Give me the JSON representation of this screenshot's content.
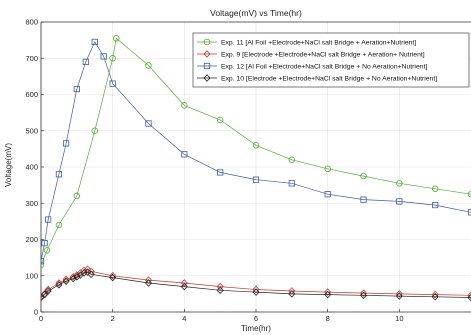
{
  "chart_data": {
    "type": "line",
    "title": "Voltage(mV) vs Time(hr)",
    "xlabel": "Time(hr)",
    "ylabel": "Voltage(mV)",
    "xlim": [
      0,
      12
    ],
    "ylim": [
      0,
      800
    ],
    "xticks": [
      0,
      2,
      4,
      6,
      8,
      10
    ],
    "yticks": [
      0,
      100,
      200,
      300,
      400,
      500,
      600,
      700,
      800
    ],
    "grid": true,
    "legend_position": "top-right",
    "series": [
      {
        "name": "Exp. 11 [Al Foil +Electrode+NaCl salt Bridge + Aeration+Nutrient]",
        "color": "#4caf2e",
        "marker": "circle",
        "x": [
          0,
          0.17,
          0.5,
          1,
          1.5,
          2,
          2.1,
          3,
          4,
          5,
          6,
          7,
          8,
          9,
          10,
          11,
          12
        ],
        "y": [
          130,
          170,
          240,
          320,
          500,
          700,
          755,
          680,
          570,
          530,
          460,
          420,
          395,
          375,
          355,
          340,
          325
        ]
      },
      {
        "name": "Exp. 9 [Electrode +Electrode+NaCl salt Bridge + Aeration+ Nutrient]",
        "color": "#c0392b",
        "marker": "diamond",
        "x": [
          0,
          0.1,
          0.2,
          0.5,
          0.7,
          0.9,
          1,
          1.1,
          1.2,
          1.3,
          1.4,
          2,
          3,
          4,
          5,
          6,
          7,
          8,
          9,
          10,
          11,
          12
        ],
        "y": [
          42,
          50,
          62,
          80,
          90,
          97,
          102,
          108,
          115,
          118,
          112,
          100,
          88,
          80,
          70,
          62,
          58,
          55,
          52,
          50,
          48,
          46
        ]
      },
      {
        "name": "Exp. 12 [Al Foil +Electrode+NaCl salt Bridge + No Aeration+Nutrient]",
        "color": "#3b5ba9",
        "marker": "square",
        "x": [
          0,
          0.1,
          0.2,
          0.5,
          0.7,
          1,
          1.25,
          1.5,
          1.75,
          2,
          3,
          4,
          5,
          6,
          7,
          8,
          9,
          10,
          11,
          12
        ],
        "y": [
          140,
          190,
          255,
          380,
          465,
          615,
          690,
          745,
          705,
          630,
          520,
          435,
          385,
          365,
          355,
          325,
          310,
          305,
          295,
          275
        ]
      },
      {
        "name": "Exp. 10 [Electrode +Electrode+NaCl salt Bridge + No Aeration+Nutrient]",
        "color": "#222222",
        "marker": "diamond",
        "x": [
          0,
          0.1,
          0.2,
          0.5,
          0.7,
          0.9,
          1,
          1.1,
          1.2,
          1.3,
          1.4,
          2,
          3,
          4,
          5,
          6,
          7,
          8,
          9,
          10,
          11,
          12
        ],
        "y": [
          40,
          48,
          58,
          75,
          85,
          92,
          97,
          102,
          108,
          110,
          104,
          95,
          80,
          70,
          60,
          55,
          50,
          48,
          46,
          44,
          42,
          40
        ]
      }
    ]
  }
}
